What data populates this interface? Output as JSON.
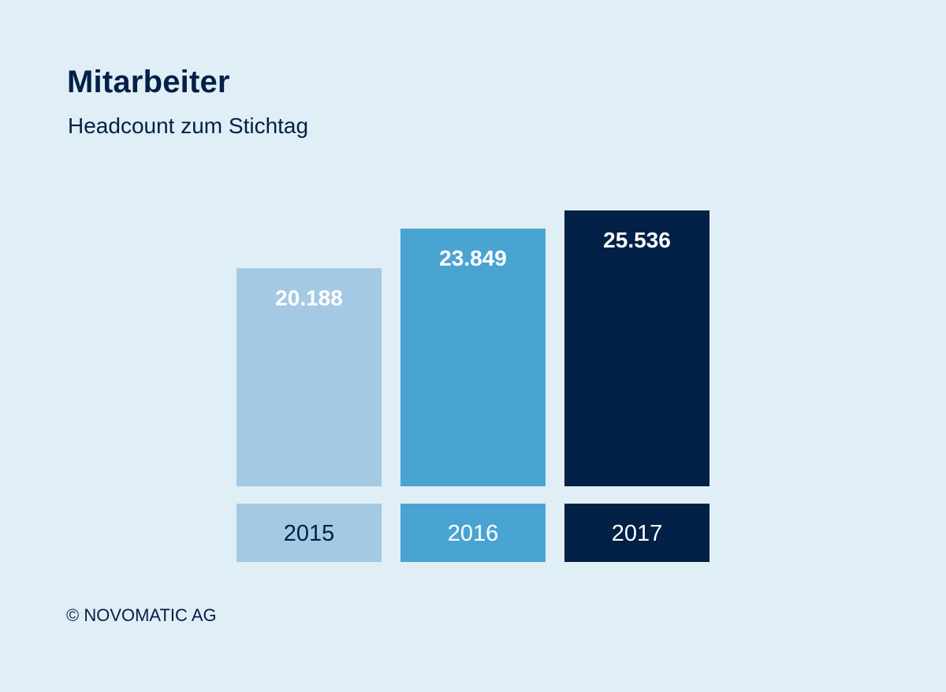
{
  "title": "Mitarbeiter",
  "subtitle": "Headcount zum Stichtag",
  "footer": "© NOVOMATIC AG",
  "colors": {
    "background": "#e0eef6",
    "text": "#032046",
    "bar_2015": "#a3c9e3",
    "bar_2016": "#4aa4d1",
    "bar_2017": "#032046"
  },
  "chart_data": {
    "type": "bar",
    "categories": [
      "2015",
      "2016",
      "2017"
    ],
    "values": [
      20188,
      23849,
      25536
    ],
    "value_labels": [
      "20.188",
      "23.849",
      "25.536"
    ],
    "bar_colors": [
      "#a3c9e3",
      "#4aa4d1",
      "#032046"
    ],
    "category_label_colors": [
      "#032046",
      "#ffffff",
      "#ffffff"
    ],
    "title": "Mitarbeiter",
    "subtitle": "Headcount zum Stichtag",
    "xlabel": "",
    "ylabel": "",
    "grid": false
  }
}
